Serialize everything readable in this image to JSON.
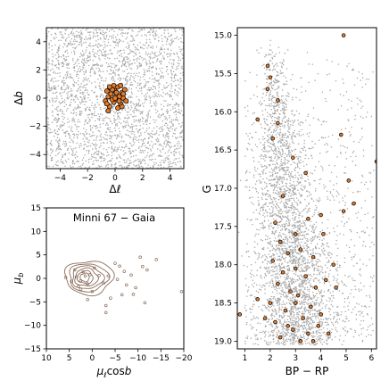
{
  "figure": {
    "panels": {
      "sky": {
        "xlabel_main": "Δ",
        "xlabel_italic": "ℓ",
        "ylabel_main": "Δ",
        "ylabel_italic": "b"
      },
      "pm": {
        "title": "Minni 67  −  Gaia",
        "xlabel_main": "μ",
        "xlabel_sub": "ℓ",
        "xlabel_rest": "cos",
        "xlabel_b": "b",
        "ylabel_main": "μ",
        "ylabel_sub": "b"
      },
      "cmd": {
        "xlabel": "BP − RP",
        "ylabel": "G"
      }
    }
  },
  "chart_data": [
    {
      "type": "scatter",
      "panel": "sky",
      "xlabel": "Δℓ",
      "ylabel": "Δb",
      "xlim": [
        -5,
        5
      ],
      "ylim": [
        -5,
        5
      ],
      "xticks": [
        -4,
        -2,
        0,
        2,
        4
      ],
      "yticks": [
        -4,
        -2,
        0,
        2,
        4
      ],
      "grid": false,
      "field_stars_description_count": 2500,
      "members": [
        [
          -0.3,
          0.7
        ],
        [
          0.2,
          0.8
        ],
        [
          0.5,
          0.4
        ],
        [
          -0.5,
          0.1
        ],
        [
          0.1,
          0.2
        ],
        [
          -0.1,
          -0.3
        ],
        [
          0.4,
          -0.4
        ],
        [
          -0.4,
          -0.6
        ],
        [
          0.6,
          0.0
        ],
        [
          0.0,
          0.5
        ],
        [
          -0.2,
          -0.1
        ],
        [
          0.3,
          0.1
        ],
        [
          -0.6,
          0.5
        ],
        [
          0.7,
          0.6
        ],
        [
          -0.1,
          0.9
        ],
        [
          0.2,
          -0.7
        ],
        [
          -0.7,
          -0.2
        ],
        [
          0.8,
          -0.2
        ],
        [
          0.1,
          -0.1
        ],
        [
          -0.3,
          0.3
        ],
        [
          0.4,
          0.9
        ],
        [
          -0.5,
          -0.9
        ],
        [
          0.0,
          0.0
        ],
        [
          0.6,
          0.3
        ],
        [
          -0.2,
          0.6
        ],
        [
          0.3,
          -0.2
        ],
        [
          -0.6,
          -0.4
        ],
        [
          0.5,
          -0.6
        ],
        [
          -0.4,
          0.8
        ],
        [
          0.1,
          0.4
        ]
      ],
      "member_color": "#e07b2a",
      "field_color": "#a8a8a8"
    },
    {
      "type": "scatter",
      "panel": "pm",
      "title": "Minni 67  −  Gaia",
      "xlabel": "μℓcosb",
      "ylabel": "μb",
      "xlim": [
        10,
        -20
      ],
      "ylim": [
        -15,
        15
      ],
      "xticks": [
        10,
        5,
        0,
        -5,
        -10,
        -15,
        -20
      ],
      "yticks": [
        -15,
        -10,
        -5,
        0,
        5,
        10,
        15
      ],
      "contour_color": "#8c6d5a",
      "points": [
        [
          1.5,
          0.5
        ],
        [
          2.5,
          -0.5
        ],
        [
          3.5,
          0.3
        ],
        [
          0.5,
          0.8
        ],
        [
          4.5,
          -0.6
        ],
        [
          1.0,
          -1.2
        ],
        [
          2.0,
          1.4
        ],
        [
          3.0,
          -1.7
        ],
        [
          -1.5,
          0.6
        ],
        [
          -2.5,
          -1.0
        ],
        [
          -0.5,
          2.2
        ],
        [
          -3.5,
          0.5
        ],
        [
          -5.5,
          -0.2
        ],
        [
          -7.0,
          1.5
        ],
        [
          -8.5,
          0.7
        ],
        [
          -9.5,
          -2.0
        ],
        [
          -11.0,
          2.5
        ],
        [
          -11.5,
          -5.2
        ],
        [
          -6.5,
          -3.5
        ],
        [
          -4.0,
          -4.2
        ],
        [
          1.0,
          -4.5
        ],
        [
          -5.0,
          3.2
        ],
        [
          -6.0,
          2.6
        ],
        [
          -10.5,
          4.5
        ],
        [
          -3.0,
          -7.3
        ],
        [
          -3.0,
          -5.8
        ],
        [
          -9.0,
          -3.4
        ],
        [
          -12.0,
          1.8
        ],
        [
          5.8,
          0.2
        ],
        [
          2.5,
          -2.3
        ],
        [
          0.0,
          -2.8
        ],
        [
          3.8,
          1.8
        ],
        [
          -19.5,
          -2.8
        ],
        [
          -14.0,
          4.0
        ],
        [
          -7.5,
          -1.4
        ]
      ]
    },
    {
      "type": "scatter",
      "panel": "cmd",
      "xlabel": "BP − RP",
      "ylabel": "G",
      "xlim": [
        0.7,
        6.2
      ],
      "ylim": [
        19.1,
        14.9
      ],
      "xticks": [
        1,
        2,
        3,
        4,
        5,
        6
      ],
      "yticks": [
        15.0,
        15.5,
        16.0,
        16.5,
        17.0,
        17.5,
        18.0,
        18.5,
        19.0
      ],
      "ytick_labels": [
        "15.0",
        "15.5",
        "16.0",
        "16.5",
        "17.0",
        "17.5",
        "18.0",
        "18.5",
        "19.0"
      ],
      "field_stars_description_count": 3600,
      "members": [
        [
          4.9,
          15.0
        ],
        [
          1.9,
          15.4
        ],
        [
          2.0,
          15.55
        ],
        [
          1.9,
          15.7
        ],
        [
          2.3,
          15.85
        ],
        [
          1.5,
          16.1
        ],
        [
          2.3,
          16.15
        ],
        [
          2.1,
          16.35
        ],
        [
          4.8,
          16.3
        ],
        [
          6.2,
          16.65
        ],
        [
          2.9,
          16.6
        ],
        [
          3.4,
          16.8
        ],
        [
          5.1,
          16.9
        ],
        [
          2.5,
          17.1
        ],
        [
          5.3,
          17.2
        ],
        [
          4.9,
          17.3
        ],
        [
          3.5,
          17.4
        ],
        [
          4.0,
          17.35
        ],
        [
          2.2,
          17.45
        ],
        [
          4.1,
          17.6
        ],
        [
          3.0,
          17.6
        ],
        [
          2.4,
          17.7
        ],
        [
          3.2,
          17.8
        ],
        [
          2.7,
          17.85
        ],
        [
          3.7,
          17.9
        ],
        [
          2.1,
          17.95
        ],
        [
          4.5,
          18.0
        ],
        [
          3.0,
          18.05
        ],
        [
          2.5,
          18.1
        ],
        [
          3.4,
          18.15
        ],
        [
          4.2,
          18.2
        ],
        [
          2.3,
          18.25
        ],
        [
          3.8,
          18.3
        ],
        [
          2.8,
          18.35
        ],
        [
          4.6,
          18.3
        ],
        [
          3.1,
          18.4
        ],
        [
          1.5,
          18.45
        ],
        [
          2.0,
          18.5
        ],
        [
          3.6,
          18.55
        ],
        [
          2.6,
          18.6
        ],
        [
          4.0,
          18.65
        ],
        [
          0.8,
          18.65
        ],
        [
          3.3,
          18.7
        ],
        [
          2.2,
          18.75
        ],
        [
          3.9,
          18.8
        ],
        [
          2.9,
          18.85
        ],
        [
          3.5,
          18.9
        ],
        [
          2.4,
          18.95
        ],
        [
          3.7,
          19.0
        ],
        [
          3.2,
          19.0
        ],
        [
          4.3,
          18.9
        ],
        [
          2.7,
          18.8
        ],
        [
          3.0,
          18.5
        ],
        [
          1.8,
          18.7
        ]
      ],
      "member_color": "#e07b2a",
      "field_color": "#a8a8a8"
    }
  ]
}
